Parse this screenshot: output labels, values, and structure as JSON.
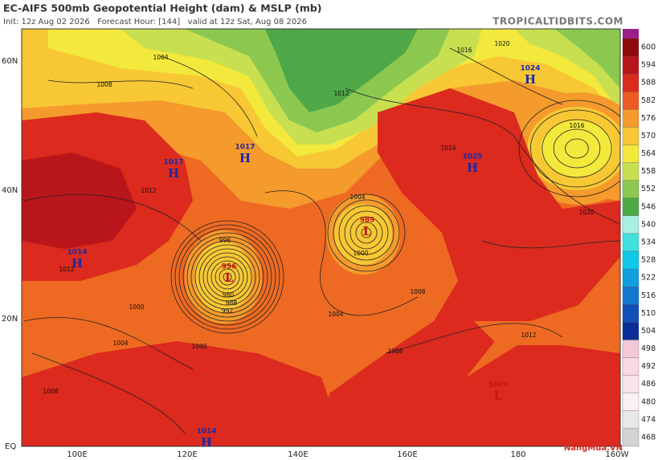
{
  "header": {
    "title": "EC-AIFS 500mb Geopotential Height (dam) & MSLP (mb)",
    "subtitle": "Init: 12z Aug 02 2026   Forecast Hour: [144]   valid at 12z Sat, Aug 08 2026",
    "site": "TROPICALTIDBITS.COM"
  },
  "map": {
    "lat_labels": [
      "60N",
      "40N",
      "20N",
      "EQ"
    ],
    "lon_labels": [
      "100E",
      "120E",
      "140E",
      "160E",
      "180",
      "160W"
    ],
    "pressure_centers": [
      {
        "letter": "H",
        "value": 1024
      },
      {
        "letter": "H",
        "value": 1025
      },
      {
        "letter": "H",
        "value": 1017
      },
      {
        "letter": "H",
        "value": 1017
      },
      {
        "letter": "H",
        "value": 1014
      },
      {
        "letter": "H",
        "value": 1014
      },
      {
        "letter": "L",
        "value": 956
      },
      {
        "letter": "L",
        "value": 989
      },
      {
        "letter": "L",
        "value": 1009
      }
    ],
    "isobar_labels": [
      1004,
      1008,
      1012,
      1016,
      1020,
      1024,
      1016,
      1020,
      1004,
      1000,
      1008,
      1004,
      1012,
      1008,
      1000,
      996,
      980,
      988,
      992,
      1012,
      1000,
      1004,
      1008,
      1012
    ]
  },
  "colorbar": {
    "levels": [
      600,
      594,
      588,
      582,
      576,
      570,
      564,
      558,
      552,
      546,
      540,
      534,
      528,
      522,
      516,
      510,
      504,
      498,
      492,
      486,
      480,
      474,
      468
    ],
    "colors": [
      "#8c0a0a",
      "#b8161a",
      "#dc2a1e",
      "#ee5a22",
      "#f59a2c",
      "#f7c834",
      "#f3e83c",
      "#c8e050",
      "#8cc850",
      "#4ea848",
      "#a8f0e0",
      "#40e0e0",
      "#10c8e8",
      "#10a0e0",
      "#1478d0",
      "#1050b8",
      "#0c2c98",
      "#f4c8d8",
      "#f8d8e4",
      "#fae4ec",
      "#fcf0f4",
      "#e8e8e8",
      "#d4d4d4"
    ]
  },
  "watermark": "NangMua.VN"
}
